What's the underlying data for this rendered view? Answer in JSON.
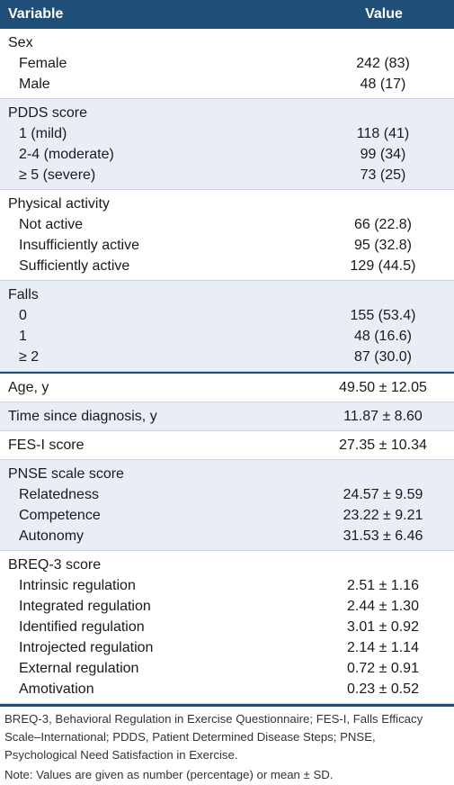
{
  "header": {
    "variable": "Variable",
    "value": "Value"
  },
  "groups": [
    {
      "title": "Sex",
      "rows": [
        {
          "label": "Female",
          "value": "242 (83)"
        },
        {
          "label": "Male",
          "value": "48 (17)"
        }
      ]
    },
    {
      "title": "PDDS score",
      "rows": [
        {
          "label": "1 (mild)",
          "value": "118 (41)"
        },
        {
          "label": "2-4 (moderate)",
          "value": "99 (34)"
        },
        {
          "label": "≥ 5 (severe)",
          "value": "73 (25)"
        }
      ]
    },
    {
      "title": "Physical activity",
      "rows": [
        {
          "label": "Not active",
          "value": "66 (22.8)"
        },
        {
          "label": "Insufficiently active",
          "value": "95 (32.8)"
        },
        {
          "label": "Sufficiently active",
          "value": "129 (44.5)"
        }
      ]
    },
    {
      "title": "Falls",
      "rows": [
        {
          "label": "0",
          "value": "155 (53.4)"
        },
        {
          "label": "1",
          "value": "48 (16.6)"
        },
        {
          "label": "≥ 2",
          "value": "87 (30.0)"
        }
      ]
    }
  ],
  "singles": [
    {
      "label": "Age, y",
      "value": "49.50 ± 12.05"
    },
    {
      "label": "Time since diagnosis, y",
      "value": "11.87 ± 8.60"
    },
    {
      "label": "FES-I score",
      "value": "27.35 ± 10.34"
    }
  ],
  "groups2": [
    {
      "title": "PNSE scale score",
      "rows": [
        {
          "label": "Relatedness",
          "value": "24.57 ± 9.59"
        },
        {
          "label": "Competence",
          "value": "23.22 ± 9.21"
        },
        {
          "label": "Autonomy",
          "value": "31.53 ± 6.46"
        }
      ]
    },
    {
      "title": "BREQ-3 score",
      "rows": [
        {
          "label": "Intrinsic regulation",
          "value": "2.51 ± 1.16"
        },
        {
          "label": "Integrated regulation",
          "value": "2.44 ± 1.30"
        },
        {
          "label": "Identified regulation",
          "value": "3.01 ± 0.92"
        },
        {
          "label": "Introjected regulation",
          "value": "2.14 ± 1.14"
        },
        {
          "label": "External regulation",
          "value": "0.72 ± 0.91"
        },
        {
          "label": "Amotivation",
          "value": "0.23 ± 0.52"
        }
      ]
    }
  ],
  "footnote": "BREQ-3, Behavioral Regulation in Exercise Questionnaire; FES-I, Falls Efficacy Scale–International; PDDS, Patient Determined Disease Steps; PNSE, Psychological Need Satisfaction in Exercise.",
  "note": "Note: Values are given as number (percentage) or mean ± SD.",
  "colors": {
    "header_bg": "#1f4e79",
    "shade": "#e9eef6"
  }
}
